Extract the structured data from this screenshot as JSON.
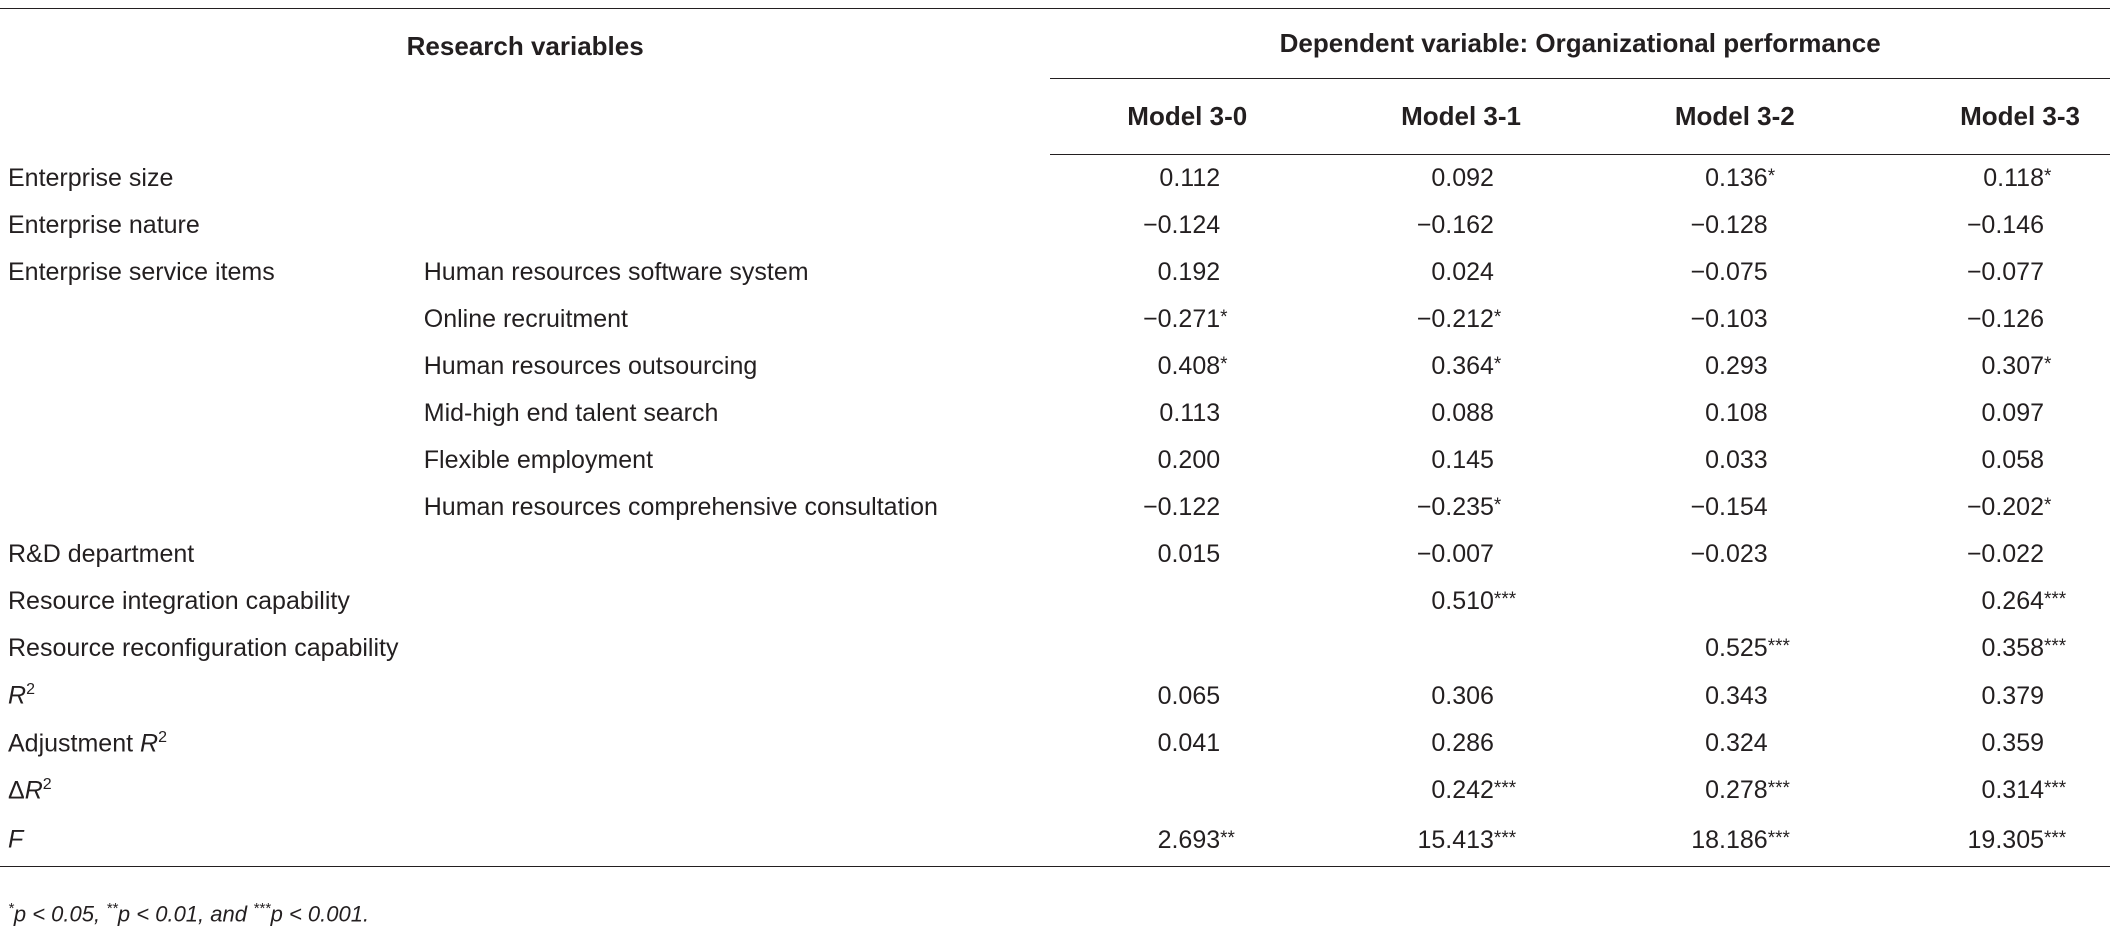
{
  "header": {
    "research_variables": "Research variables",
    "dependent_variable": "Dependent variable: Organizational performance",
    "models": [
      "Model 3-0",
      "Model 3-1",
      "Model 3-2",
      "Model 3-3"
    ]
  },
  "rows": [
    {
      "label": "Enterprise size",
      "sub": "",
      "vals": [
        [
          "0.112",
          ""
        ],
        [
          "0.092",
          ""
        ],
        [
          "0.136",
          "*"
        ],
        [
          "0.118",
          "*"
        ]
      ]
    },
    {
      "label": "Enterprise nature",
      "sub": "",
      "vals": [
        [
          "−0.124",
          ""
        ],
        [
          "−0.162",
          ""
        ],
        [
          "−0.128",
          ""
        ],
        [
          "−0.146",
          ""
        ]
      ]
    },
    {
      "label": "Enterprise service items",
      "sub": "Human resources software system",
      "vals": [
        [
          "0.192",
          ""
        ],
        [
          "0.024",
          ""
        ],
        [
          "−0.075",
          ""
        ],
        [
          "−0.077",
          ""
        ]
      ]
    },
    {
      "label": "",
      "sub": "Online recruitment",
      "vals": [
        [
          "−0.271",
          "*"
        ],
        [
          "−0.212",
          "*"
        ],
        [
          "−0.103",
          ""
        ],
        [
          "−0.126",
          ""
        ]
      ]
    },
    {
      "label": "",
      "sub": "Human resources outsourcing",
      "vals": [
        [
          "0.408",
          "*"
        ],
        [
          "0.364",
          "*"
        ],
        [
          "0.293",
          ""
        ],
        [
          "0.307",
          "*"
        ]
      ]
    },
    {
      "label": "",
      "sub": "Mid-high end talent search",
      "vals": [
        [
          "0.113",
          ""
        ],
        [
          "0.088",
          ""
        ],
        [
          "0.108",
          ""
        ],
        [
          "0.097",
          ""
        ]
      ]
    },
    {
      "label": "",
      "sub": "Flexible employment",
      "vals": [
        [
          "0.200",
          ""
        ],
        [
          "0.145",
          ""
        ],
        [
          "0.033",
          ""
        ],
        [
          "0.058",
          ""
        ]
      ]
    },
    {
      "label": "",
      "sub": "Human resources comprehensive consultation",
      "vals": [
        [
          "−0.122",
          ""
        ],
        [
          "−0.235",
          "*"
        ],
        [
          "−0.154",
          ""
        ],
        [
          "−0.202",
          "*"
        ]
      ]
    },
    {
      "label": "R&D department",
      "sub": "",
      "vals": [
        [
          "0.015",
          ""
        ],
        [
          "−0.007",
          ""
        ],
        [
          "−0.023",
          ""
        ],
        [
          "−0.022",
          ""
        ]
      ]
    },
    {
      "label": "Resource integration capability",
      "sub": "",
      "vals": [
        [
          "",
          ""
        ],
        [
          "0.510",
          "***"
        ],
        [
          "",
          ""
        ],
        [
          "0.264",
          "***"
        ]
      ]
    },
    {
      "label": "Resource reconfiguration capability",
      "sub": "",
      "vals": [
        [
          "",
          ""
        ],
        [
          "",
          ""
        ],
        [
          "0.525",
          "***"
        ],
        [
          "0.358",
          "***"
        ]
      ]
    }
  ],
  "stat_rows": [
    {
      "pre": "",
      "sym": "R",
      "sup": "2",
      "vals": [
        [
          "0.065",
          ""
        ],
        [
          "0.306",
          ""
        ],
        [
          "0.343",
          ""
        ],
        [
          "0.379",
          ""
        ]
      ]
    },
    {
      "pre": "Adjustment ",
      "sym": "R",
      "sup": "2",
      "vals": [
        [
          "0.041",
          ""
        ],
        [
          "0.286",
          ""
        ],
        [
          "0.324",
          ""
        ],
        [
          "0.359",
          ""
        ]
      ]
    },
    {
      "pre": "Δ",
      "sym": "R",
      "sup": "2",
      "vals": [
        [
          "",
          ""
        ],
        [
          "0.242",
          "***"
        ],
        [
          "0.278",
          "***"
        ],
        [
          "0.314",
          "***"
        ]
      ]
    },
    {
      "pre": "",
      "sym": "F",
      "sup": "",
      "vals": [
        [
          "2.693",
          "**"
        ],
        [
          "15.413",
          "***"
        ],
        [
          "18.186",
          "***"
        ],
        [
          "19.305",
          "***"
        ]
      ]
    }
  ],
  "footnote": {
    "s1": "*",
    "p1": "p",
    "t1": " < 0.05, ",
    "s2": "**",
    "p2": "p",
    "t2": " < 0.01, and ",
    "s3": "***",
    "p3": "p",
    "t3": " < 0.001."
  }
}
